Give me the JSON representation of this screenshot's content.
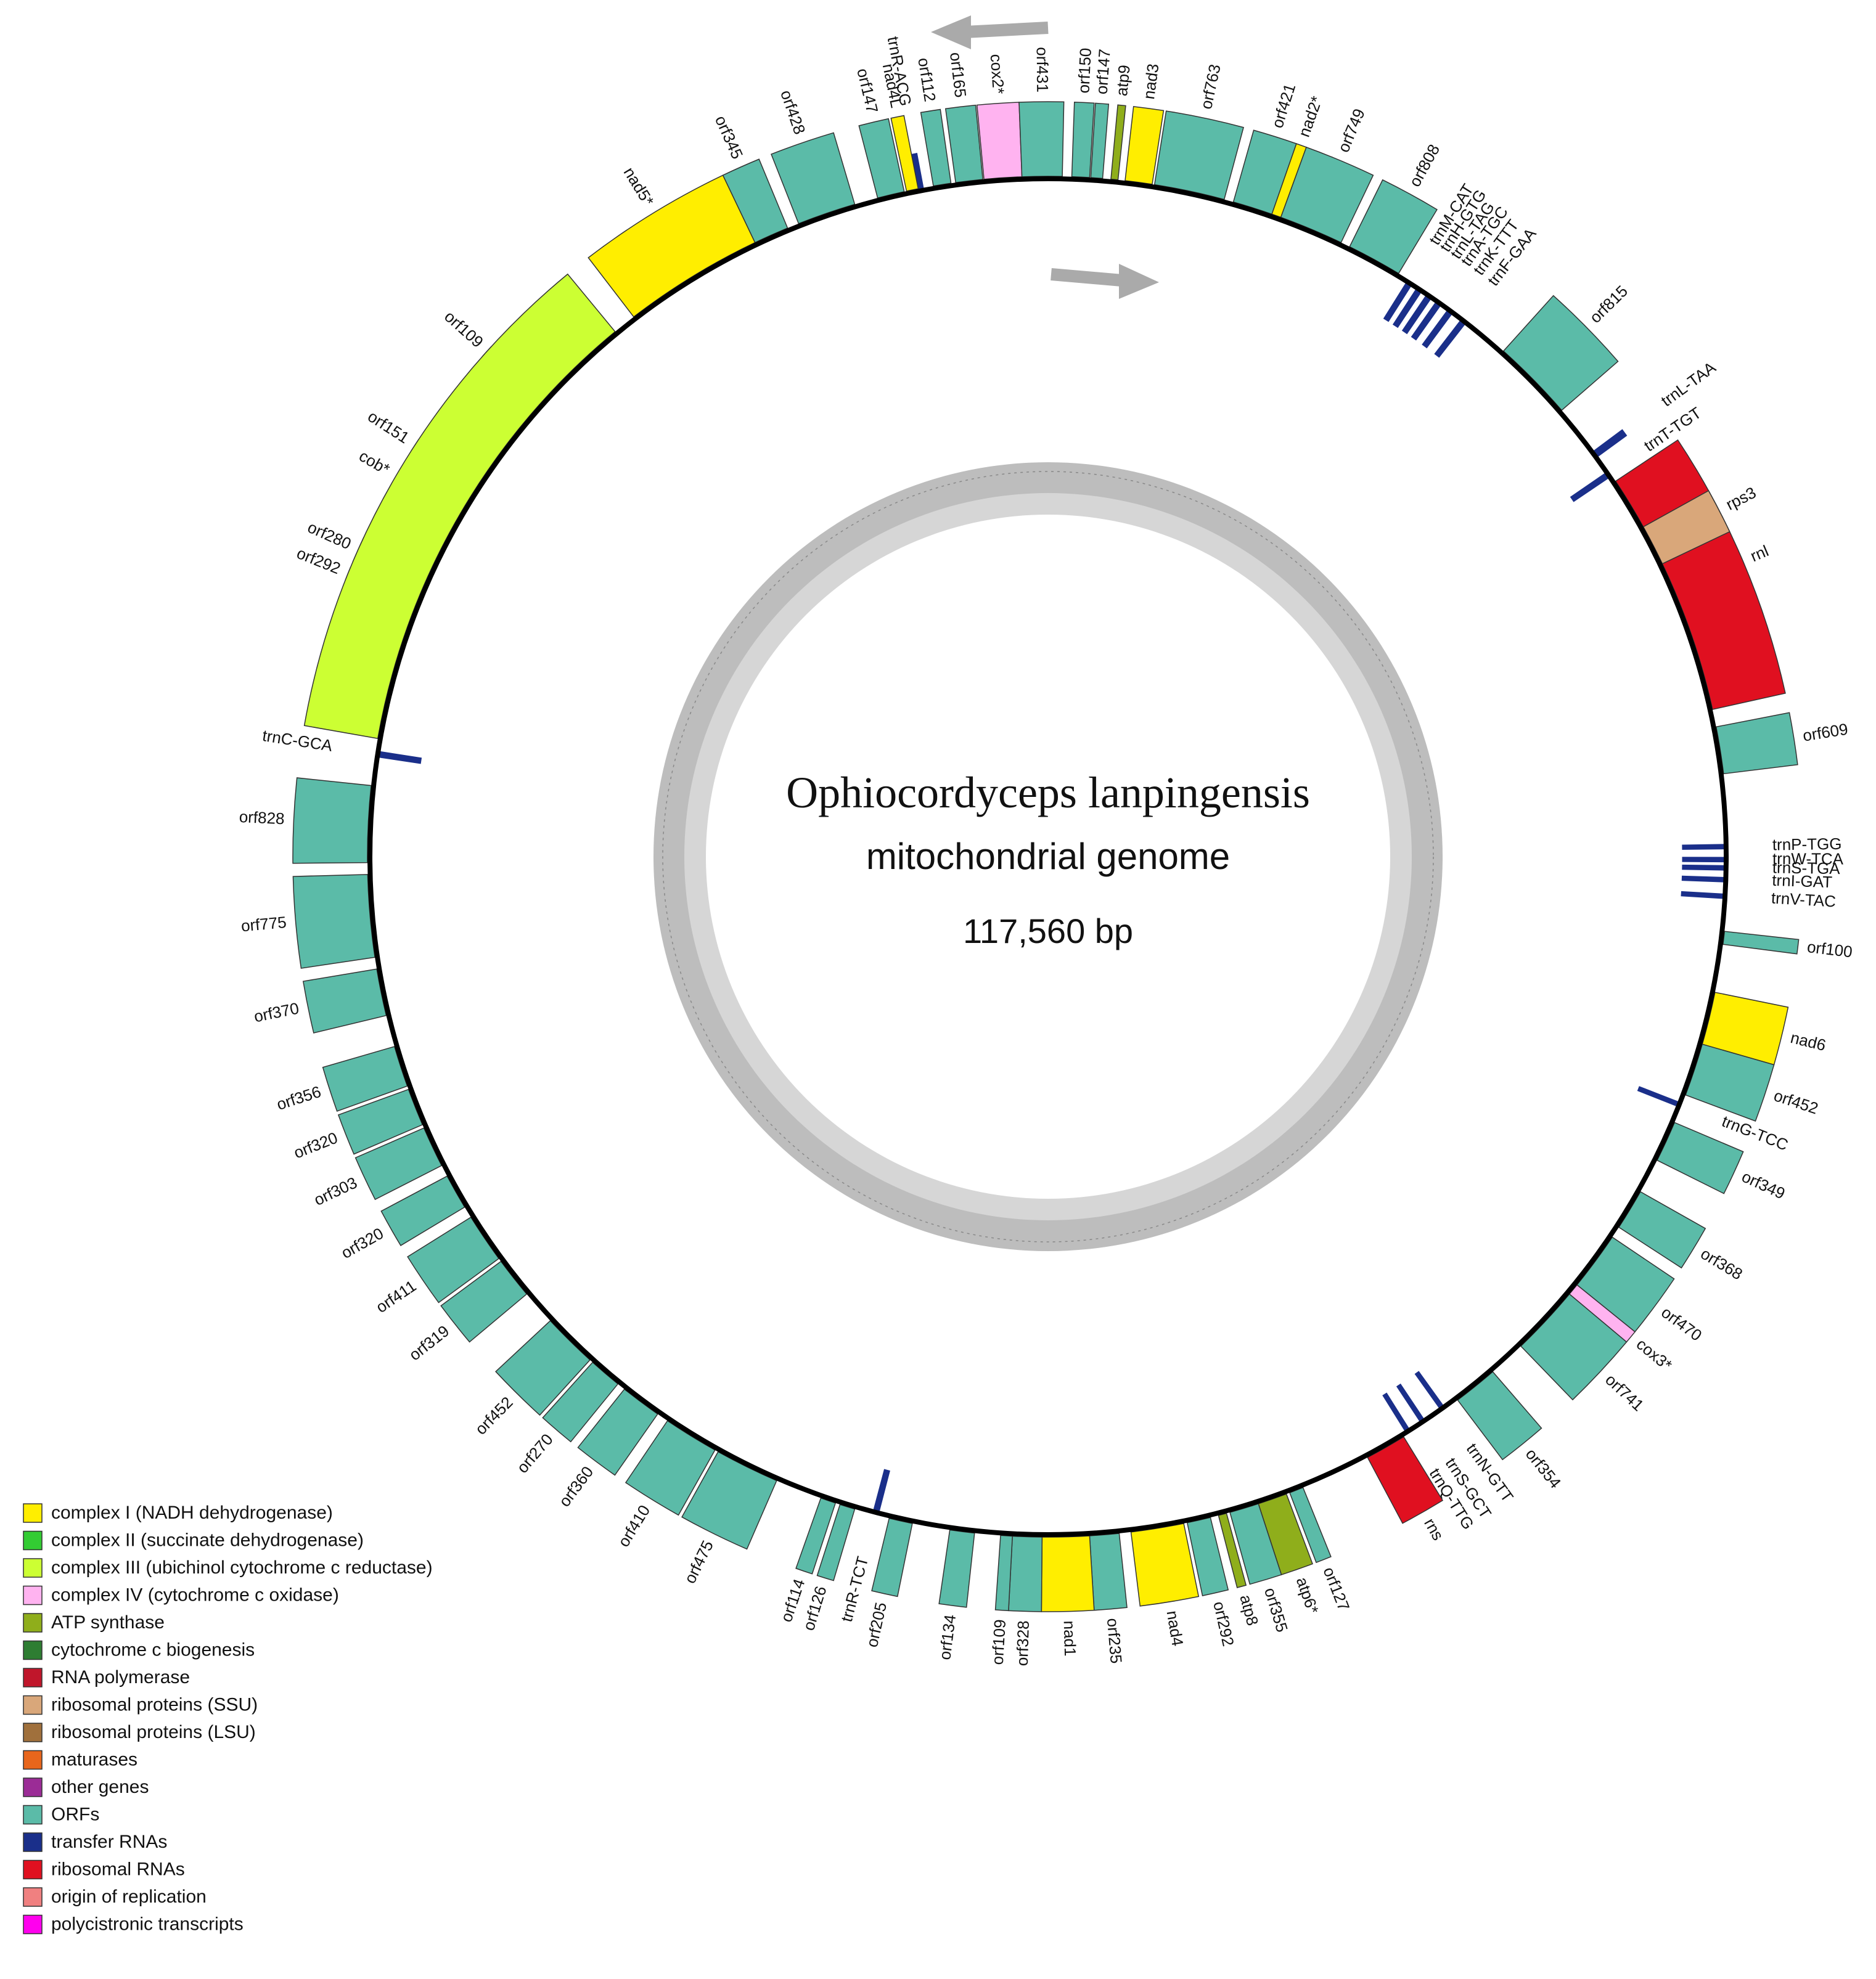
{
  "map": {
    "title": "Ophiocordyceps lanpingensis",
    "subtitle": "mitochondrial genome",
    "size_label": "117,560 bp"
  },
  "legend": [
    {
      "key": "complex_I",
      "label": "complex I (NADH dehydrogenase)",
      "color": "#ffee00"
    },
    {
      "key": "complex_II",
      "label": "complex II (succinate dehydrogenase)",
      "color": "#33cc33"
    },
    {
      "key": "complex_III",
      "label": "complex III (ubichinol cytochrome c reductase)",
      "color": "#ccff33"
    },
    {
      "key": "complex_IV",
      "label": "complex IV (cytochrome c oxidase)",
      "color": "#ffb3f0"
    },
    {
      "key": "atp",
      "label": "ATP synthase",
      "color": "#8fae1b"
    },
    {
      "key": "ccb",
      "label": "cytochrome c biogenesis",
      "color": "#2e7d32"
    },
    {
      "key": "rnapol",
      "label": "RNA polymerase",
      "color": "#c0162b"
    },
    {
      "key": "rps",
      "label": "ribosomal proteins (SSU)",
      "color": "#d9a77a"
    },
    {
      "key": "rpl",
      "label": "ribosomal proteins (LSU)",
      "color": "#a0703c"
    },
    {
      "key": "mat",
      "label": "maturases",
      "color": "#e8661c"
    },
    {
      "key": "other",
      "label": "other genes",
      "color": "#9b2c96"
    },
    {
      "key": "orf",
      "label": "ORFs",
      "color": "#5bbba8"
    },
    {
      "key": "trna",
      "label": "transfer RNAs",
      "color": "#1a2f8a"
    },
    {
      "key": "rrna",
      "label": "ribosomal RNAs",
      "color": "#e01020"
    },
    {
      "key": "ori",
      "label": "origin of replication",
      "color": "#f08080"
    },
    {
      "key": "poly",
      "label": "polycistronic transcripts",
      "color": "#ff00ee"
    }
  ],
  "genes": [
    {
      "name": "trnR-ACG",
      "type": "trna",
      "strand": "out",
      "start": 349.0,
      "end": 349.4
    },
    {
      "name": "orf147",
      "type": "orf",
      "strand": "out",
      "start": 345.5,
      "end": 347.8
    },
    {
      "name": "nad4L",
      "type": "complex_I",
      "strand": "out",
      "start": 348.0,
      "end": 349.0
    },
    {
      "name": "orf112",
      "type": "orf",
      "strand": "out",
      "start": 350.3,
      "end": 351.8
    },
    {
      "name": "orf165",
      "type": "orf",
      "strand": "out",
      "start": 352.2,
      "end": 354.5
    },
    {
      "name": "cox2*",
      "type": "complex_IV",
      "strand": "out",
      "start": 354.6,
      "end": 357.8
    },
    {
      "name": "orf431",
      "type": "orf",
      "strand": "out",
      "start": 357.8,
      "end": 1.2
    },
    {
      "name": "orf150",
      "type": "orf",
      "strand": "out",
      "start": 2.0,
      "end": 3.5
    },
    {
      "name": "orf147",
      "type": "orf",
      "strand": "out",
      "start": 3.6,
      "end": 4.6
    },
    {
      "name": "atp9",
      "type": "atp",
      "strand": "out",
      "start": 5.3,
      "end": 5.9
    },
    {
      "name": "nad3",
      "type": "complex_I",
      "strand": "out",
      "start": 6.5,
      "end": 8.8
    },
    {
      "name": "orf763",
      "type": "orf",
      "strand": "out",
      "start": 9.0,
      "end": 15.0
    },
    {
      "name": "orf421",
      "type": "orf",
      "strand": "out",
      "start": 15.8,
      "end": 19.2
    },
    {
      "name": "nad2*",
      "type": "complex_I",
      "strand": "out",
      "start": 19.2,
      "end": 20.0
    },
    {
      "name": "orf749",
      "type": "orf",
      "strand": "out",
      "start": 20.0,
      "end": 25.5
    },
    {
      "name": "orf808",
      "type": "orf",
      "strand": "out",
      "start": 26.3,
      "end": 31.0
    },
    {
      "name": "trnM-CAT",
      "type": "trna",
      "strand": "in",
      "start": 32.0,
      "end": 32.4
    },
    {
      "name": "trnH-GTG",
      "type": "trna",
      "strand": "in",
      "start": 33.0,
      "end": 33.4
    },
    {
      "name": "trnL-TAG",
      "type": "trna",
      "strand": "in",
      "start": 34.0,
      "end": 34.4
    },
    {
      "name": "trnA-TGC",
      "type": "trna",
      "strand": "in",
      "start": 35.0,
      "end": 35.4
    },
    {
      "name": "trnK-TTT",
      "type": "trna",
      "strand": "in",
      "start": 36.2,
      "end": 36.6
    },
    {
      "name": "trnF-GAA",
      "type": "trna",
      "strand": "in",
      "start": 37.6,
      "end": 38.0
    },
    {
      "name": "orf815",
      "type": "orf",
      "strand": "out",
      "start": 42.0,
      "end": 49.0
    },
    {
      "name": "trnL-TAA",
      "type": "trna",
      "strand": "out",
      "start": 53.4,
      "end": 53.9
    },
    {
      "name": "trnT-TGT",
      "type": "trna",
      "strand": "in",
      "start": 55.5,
      "end": 55.9
    },
    {
      "name": "rnl",
      "type": "rrna",
      "strand": "out",
      "start": 56.5,
      "end": 77.5
    },
    {
      "name": "rps3",
      "type": "rps",
      "strand": "out",
      "start": 61.0,
      "end": 64.5
    },
    {
      "name": "orf609",
      "type": "orf",
      "strand": "out",
      "start": 79.0,
      "end": 83.0
    },
    {
      "name": "trnP-TGG",
      "type": "trna",
      "strand": "in",
      "start": 89.0,
      "end": 89.3
    },
    {
      "name": "trnW-TCA",
      "type": "trna",
      "strand": "in",
      "start": 90.1,
      "end": 90.4
    },
    {
      "name": "trnS-TGA",
      "type": "trna",
      "strand": "in",
      "start": 90.8,
      "end": 91.1
    },
    {
      "name": "trnI-GAT",
      "type": "trna",
      "strand": "in",
      "start": 91.8,
      "end": 92.1
    },
    {
      "name": "trnV-TAC",
      "type": "trna",
      "strand": "in",
      "start": 93.2,
      "end": 93.5
    },
    {
      "name": "orf100",
      "type": "orf",
      "strand": "out",
      "start": 96.3,
      "end": 97.4
    },
    {
      "name": "nad6",
      "type": "complex_I",
      "strand": "out",
      "start": 101.5,
      "end": 106.0
    },
    {
      "name": "orf452",
      "type": "orf",
      "strand": "out",
      "start": 106.0,
      "end": 110.5
    },
    {
      "name": "trnG-TCC",
      "type": "trna",
      "strand": "in",
      "start": 111.3,
      "end": 111.6
    },
    {
      "name": "orf349",
      "type": "orf",
      "strand": "out",
      "start": 113.0,
      "end": 116.5
    },
    {
      "name": "orf368",
      "type": "orf",
      "strand": "out",
      "start": 119.5,
      "end": 123.0
    },
    {
      "name": "orf470",
      "type": "orf",
      "strand": "out",
      "start": 124.0,
      "end": 129.0
    },
    {
      "name": "cox3*",
      "type": "complex_IV",
      "strand": "out",
      "start": 129.0,
      "end": 130.0
    },
    {
      "name": "orf741",
      "type": "orf",
      "strand": "out",
      "start": 130.0,
      "end": 136.0
    },
    {
      "name": "orf354",
      "type": "orf",
      "strand": "out",
      "start": 139.2,
      "end": 143.0
    },
    {
      "name": "trnN-GTT",
      "type": "trna",
      "strand": "in",
      "start": 144.3,
      "end": 144.6
    },
    {
      "name": "trnS-GCT",
      "type": "trna",
      "strand": "in",
      "start": 146.3,
      "end": 146.6
    },
    {
      "name": "trnQ-TTG",
      "type": "trna",
      "strand": "in",
      "start": 147.8,
      "end": 148.1
    },
    {
      "name": "rns",
      "type": "rrna",
      "strand": "out",
      "start": 148.5,
      "end": 152.0
    },
    {
      "name": "orf127",
      "type": "orf",
      "strand": "out",
      "start": 158.0,
      "end": 159.2
    },
    {
      "name": "atp6*",
      "type": "atp",
      "strand": "out",
      "start": 159.5,
      "end": 162.0
    },
    {
      "name": "orf355",
      "type": "orf",
      "strand": "out",
      "start": 162.0,
      "end": 164.5
    },
    {
      "name": "atp8",
      "type": "atp",
      "strand": "out",
      "start": 164.8,
      "end": 165.5
    },
    {
      "name": "orf292",
      "type": "orf",
      "strand": "out",
      "start": 166.2,
      "end": 168.2
    },
    {
      "name": "nad4",
      "type": "complex_I",
      "strand": "out",
      "start": 168.5,
      "end": 173.0
    },
    {
      "name": "orf235",
      "type": "orf",
      "strand": "out",
      "start": 174.0,
      "end": 176.5
    },
    {
      "name": "nad1",
      "type": "complex_I",
      "strand": "out",
      "start": 176.5,
      "end": 180.5
    },
    {
      "name": "orf328",
      "type": "orf",
      "strand": "out",
      "start": 180.5,
      "end": 183.0
    },
    {
      "name": "orf109",
      "type": "orf",
      "strand": "out",
      "start": 183.0,
      "end": 184.0
    },
    {
      "name": "orf134",
      "type": "orf",
      "strand": "out",
      "start": 186.2,
      "end": 188.3
    },
    {
      "name": "orf205",
      "type": "orf",
      "strand": "out",
      "start": 191.5,
      "end": 193.5
    },
    {
      "name": "trnR-TCT",
      "type": "trna",
      "strand": "in",
      "start": 194.5,
      "end": 194.9
    },
    {
      "name": "orf126",
      "type": "orf",
      "strand": "out",
      "start": 196.5,
      "end": 197.8
    },
    {
      "name": "orf114",
      "type": "orf",
      "strand": "out",
      "start": 198.2,
      "end": 199.5
    },
    {
      "name": "orf475",
      "type": "orf",
      "strand": "out",
      "start": 203.5,
      "end": 209.0
    },
    {
      "name": "orf410",
      "type": "orf",
      "strand": "out",
      "start": 209.3,
      "end": 214.0
    },
    {
      "name": "orf360",
      "type": "orf",
      "strand": "out",
      "start": 215.0,
      "end": 218.5
    },
    {
      "name": "orf270",
      "type": "orf",
      "strand": "out",
      "start": 219.2,
      "end": 222.0
    },
    {
      "name": "orf452",
      "type": "orf",
      "strand": "out",
      "start": 222.3,
      "end": 227.0
    },
    {
      "name": "orf319",
      "type": "orf",
      "strand": "out",
      "start": 230.0,
      "end": 233.5
    },
    {
      "name": "orf411",
      "type": "orf",
      "strand": "out",
      "start": 233.8,
      "end": 238.0
    },
    {
      "name": "orf320",
      "type": "orf",
      "strand": "out",
      "start": 239.0,
      "end": 242.0
    },
    {
      "name": "orf303",
      "type": "orf",
      "strand": "out",
      "start": 243.0,
      "end": 246.5
    },
    {
      "name": "orf320",
      "type": "orf",
      "strand": "out",
      "start": 246.8,
      "end": 250.0
    },
    {
      "name": "orf356",
      "type": "orf",
      "strand": "out",
      "start": 250.3,
      "end": 253.8
    },
    {
      "name": "orf370",
      "type": "orf",
      "strand": "out",
      "start": 256.5,
      "end": 260.5
    },
    {
      "name": "orf775",
      "type": "orf",
      "strand": "out",
      "start": 261.5,
      "end": 268.5
    },
    {
      "name": "orf828",
      "type": "orf",
      "strand": "out",
      "start": 269.5,
      "end": 276.0
    },
    {
      "name": "trnC-GCA",
      "type": "trna",
      "strand": "in",
      "start": 278.5,
      "end": 278.9
    },
    {
      "name": "orf292",
      "type": "orf",
      "strand": "out",
      "start": 291.5,
      "end": 292.5
    },
    {
      "name": "orf280",
      "type": "orf",
      "strand": "out",
      "start": 293.0,
      "end": 295.0
    },
    {
      "name": "orf151",
      "type": "orf",
      "strand": "out",
      "start": 302.5,
      "end": 303.5
    },
    {
      "name": "orf109",
      "type": "orf",
      "strand": "out",
      "start": 311.5,
      "end": 312.5
    },
    {
      "name": "cob*",
      "type": "complex_III",
      "strand": "out",
      "start": 280.0,
      "end": 320.5
    },
    {
      "name": "nad5*",
      "type": "complex_I",
      "strand": "out",
      "start": 322.5,
      "end": 334.5
    },
    {
      "name": "orf345",
      "type": "orf",
      "strand": "out",
      "start": 334.5,
      "end": 337.5
    },
    {
      "name": "orf428",
      "type": "orf",
      "strand": "out",
      "start": 338.5,
      "end": 343.5
    }
  ]
}
